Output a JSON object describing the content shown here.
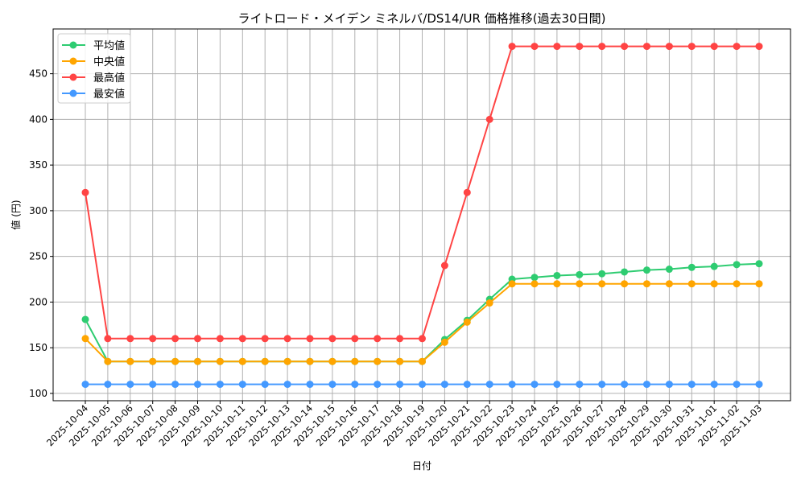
{
  "chart_data": {
    "type": "line",
    "title": "ライトロード・メイデン ミネルバ/DS14/UR 価格推移(過去30日間)",
    "xlabel": "日付",
    "ylabel": "値 (円)",
    "ylim": [
      92,
      499
    ],
    "yticks": [
      100,
      150,
      200,
      250,
      300,
      350,
      400,
      450
    ],
    "grid": true,
    "legend_position": "top-left",
    "x": [
      "2025-10-04",
      "2025-10-05",
      "2025-10-06",
      "2025-10-07",
      "2025-10-08",
      "2025-10-09",
      "2025-10-10",
      "2025-10-11",
      "2025-10-12",
      "2025-10-13",
      "2025-10-14",
      "2025-10-15",
      "2025-10-16",
      "2025-10-17",
      "2025-10-18",
      "2025-10-19",
      "2025-10-20",
      "2025-10-21",
      "2025-10-22",
      "2025-10-23",
      "2025-10-24",
      "2025-10-25",
      "2025-10-26",
      "2025-10-27",
      "2025-10-28",
      "2025-10-29",
      "2025-10-30",
      "2025-10-31",
      "2025-11-01",
      "2025-11-02",
      "2025-11-03"
    ],
    "series": [
      {
        "name": "平均値",
        "color": "#2ecc71",
        "values": [
          181,
          135,
          135,
          135,
          135,
          135,
          135,
          135,
          135,
          135,
          135,
          135,
          135,
          135,
          135,
          135,
          159,
          180,
          203,
          225,
          227,
          229,
          230,
          231,
          233,
          235,
          236,
          238,
          239,
          241,
          242
        ]
      },
      {
        "name": "中央値",
        "color": "#ffa500",
        "values": [
          160,
          135,
          135,
          135,
          135,
          135,
          135,
          135,
          135,
          135,
          135,
          135,
          135,
          135,
          135,
          135,
          156,
          178,
          199,
          220,
          220,
          220,
          220,
          220,
          220,
          220,
          220,
          220,
          220,
          220,
          220
        ]
      },
      {
        "name": "最高値",
        "color": "#ff4444",
        "values": [
          320,
          160,
          160,
          160,
          160,
          160,
          160,
          160,
          160,
          160,
          160,
          160,
          160,
          160,
          160,
          160,
          240,
          320,
          400,
          480,
          480,
          480,
          480,
          480,
          480,
          480,
          480,
          480,
          480,
          480,
          480
        ]
      },
      {
        "name": "最安値",
        "color": "#4499ff",
        "values": [
          110,
          110,
          110,
          110,
          110,
          110,
          110,
          110,
          110,
          110,
          110,
          110,
          110,
          110,
          110,
          110,
          110,
          110,
          110,
          110,
          110,
          110,
          110,
          110,
          110,
          110,
          110,
          110,
          110,
          110,
          110
        ]
      }
    ]
  }
}
